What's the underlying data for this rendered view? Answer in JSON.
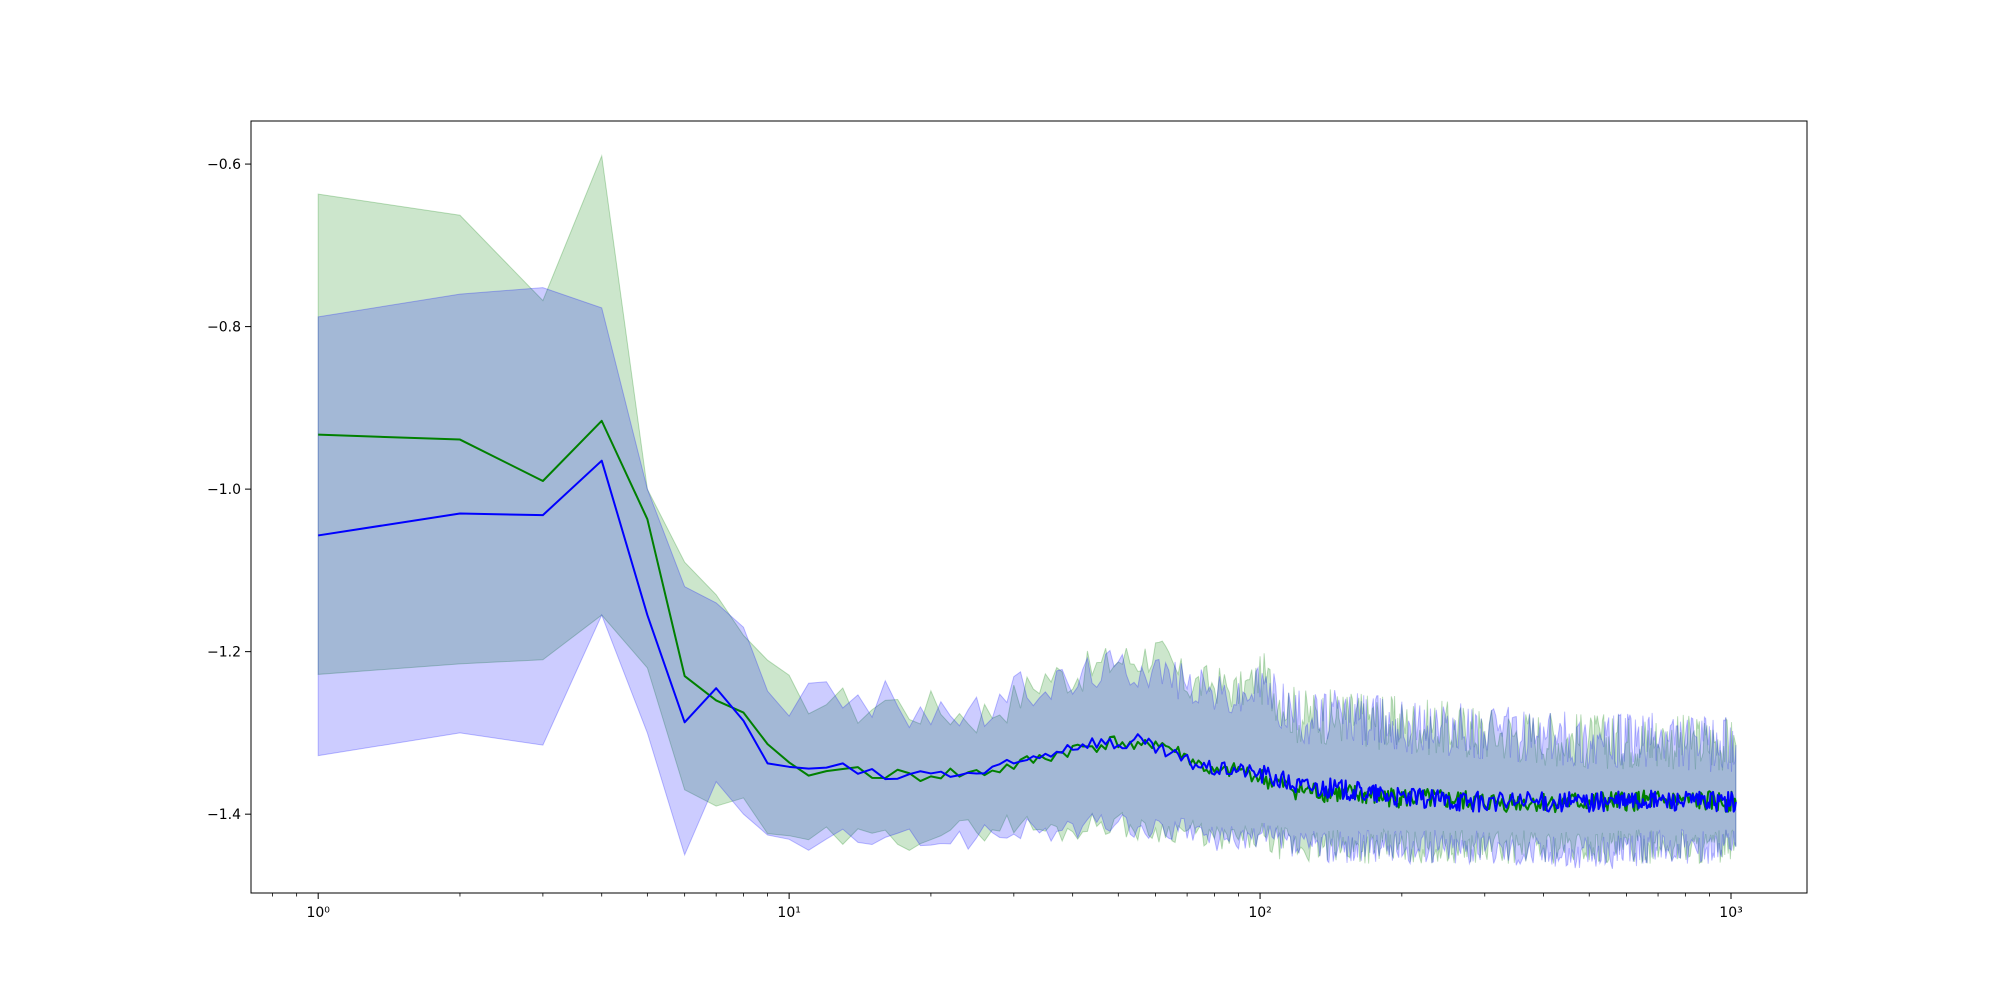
{
  "chart_data": {
    "type": "line",
    "title": "",
    "xlabel": "",
    "ylabel": "",
    "xscale": "log",
    "xlim": [
      0.72,
      1450
    ],
    "ylim": [
      -1.497,
      -0.547
    ],
    "grid": false,
    "legend": "none",
    "x_ticks": [
      {
        "value": 1,
        "label": "10⁰"
      },
      {
        "value": 10,
        "label": "10¹"
      },
      {
        "value": 100,
        "label": "10²"
      },
      {
        "value": 1000,
        "label": "10³"
      }
    ],
    "y_ticks": [
      {
        "value": -0.6,
        "label": "−0.6"
      },
      {
        "value": -0.8,
        "label": "−0.8"
      },
      {
        "value": -1.0,
        "label": "−1.0"
      },
      {
        "value": -1.2,
        "label": "−1.2"
      },
      {
        "value": -1.4,
        "label": "−1.4"
      }
    ],
    "series": [
      {
        "color": "#008000",
        "band_color": "#008000",
        "band_opacity": 0.2,
        "x": [
          1,
          2,
          3,
          4,
          5,
          6,
          7,
          8,
          9,
          10,
          12,
          14,
          16,
          18,
          20,
          25,
          30,
          35,
          40,
          45,
          50,
          55,
          60,
          70,
          80,
          90,
          100,
          120,
          150,
          200,
          300,
          500,
          700,
          1024
        ],
        "mean": [
          -0.933,
          -0.939,
          -0.99,
          -0.916,
          -1.037,
          -1.23,
          -1.26,
          -1.275,
          -1.32,
          -1.345,
          -1.348,
          -1.345,
          -1.35,
          -1.355,
          -1.35,
          -1.35,
          -1.34,
          -1.33,
          -1.32,
          -1.315,
          -1.31,
          -1.32,
          -1.31,
          -1.33,
          -1.35,
          -1.345,
          -1.355,
          -1.37,
          -1.375,
          -1.38,
          -1.385,
          -1.385,
          -1.383,
          -1.385
        ],
        "upper": [
          -0.637,
          -0.663,
          -0.768,
          -0.59,
          -1.0,
          -1.09,
          -1.13,
          -1.18,
          -1.23,
          -1.25,
          -1.26,
          -1.27,
          -1.26,
          -1.27,
          -1.27,
          -1.28,
          -1.26,
          -1.23,
          -1.23,
          -1.22,
          -1.21,
          -1.21,
          -1.2,
          -1.24,
          -1.24,
          -1.25,
          -1.23,
          -1.28,
          -1.28,
          -1.29,
          -1.3,
          -1.31,
          -1.31,
          -1.315
        ],
        "lower": [
          -1.228,
          -1.215,
          -1.21,
          -1.155,
          -1.22,
          -1.37,
          -1.39,
          -1.38,
          -1.42,
          -1.44,
          -1.43,
          -1.43,
          -1.43,
          -1.43,
          -1.42,
          -1.42,
          -1.41,
          -1.42,
          -1.42,
          -1.41,
          -1.41,
          -1.42,
          -1.42,
          -1.42,
          -1.43,
          -1.43,
          -1.43,
          -1.44,
          -1.44,
          -1.44,
          -1.44,
          -1.44,
          -1.44,
          -1.44
        ]
      },
      {
        "color": "#0000ff",
        "band_color": "#0000ff",
        "band_opacity": 0.2,
        "x": [
          1,
          2,
          3,
          4,
          5,
          6,
          7,
          8,
          9,
          10,
          12,
          14,
          16,
          18,
          20,
          25,
          30,
          35,
          40,
          45,
          50,
          55,
          60,
          70,
          80,
          90,
          100,
          120,
          150,
          200,
          300,
          500,
          700,
          1024
        ],
        "mean": [
          -1.057,
          -1.03,
          -1.032,
          -0.965,
          -1.155,
          -1.287,
          -1.245,
          -1.285,
          -1.335,
          -1.348,
          -1.34,
          -1.35,
          -1.355,
          -1.352,
          -1.35,
          -1.35,
          -1.34,
          -1.325,
          -1.315,
          -1.31,
          -1.315,
          -1.31,
          -1.32,
          -1.335,
          -1.345,
          -1.345,
          -1.35,
          -1.365,
          -1.37,
          -1.38,
          -1.385,
          -1.385,
          -1.383,
          -1.385
        ],
        "upper": [
          -0.788,
          -0.76,
          -0.752,
          -0.777,
          -1.0,
          -1.12,
          -1.14,
          -1.17,
          -1.24,
          -1.26,
          -1.25,
          -1.27,
          -1.26,
          -1.27,
          -1.27,
          -1.28,
          -1.25,
          -1.24,
          -1.24,
          -1.22,
          -1.22,
          -1.22,
          -1.22,
          -1.24,
          -1.25,
          -1.26,
          -1.24,
          -1.28,
          -1.28,
          -1.29,
          -1.3,
          -1.31,
          -1.31,
          -1.315
        ],
        "lower": [
          -1.328,
          -1.3,
          -1.315,
          -1.155,
          -1.3,
          -1.45,
          -1.36,
          -1.4,
          -1.43,
          -1.44,
          -1.43,
          -1.43,
          -1.44,
          -1.43,
          -1.43,
          -1.43,
          -1.42,
          -1.42,
          -1.42,
          -1.41,
          -1.41,
          -1.42,
          -1.42,
          -1.42,
          -1.43,
          -1.43,
          -1.43,
          -1.44,
          -1.44,
          -1.44,
          -1.44,
          -1.45,
          -1.44,
          -1.44
        ]
      }
    ]
  }
}
